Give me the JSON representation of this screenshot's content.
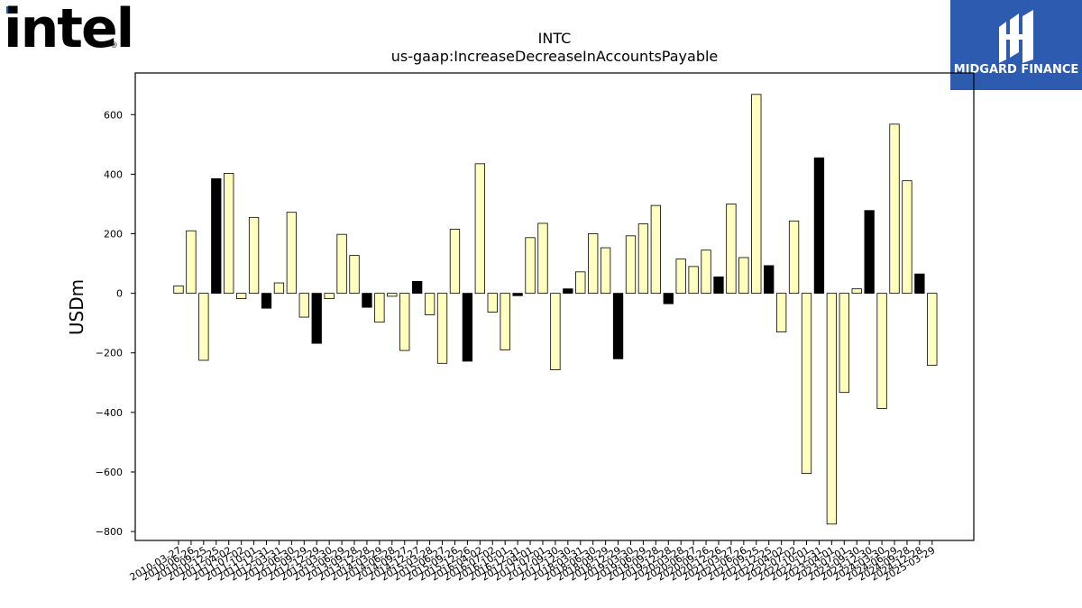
{
  "logos": {
    "left_text": "intel",
    "left_reg": "®",
    "right_text": "MIDGARD FINANCE",
    "right_bg": "#2d5bb0"
  },
  "chart_data": {
    "type": "bar",
    "title": "INTC",
    "subtitle": "us-gaap:IncreaseDecreaseInAccountsPayable",
    "ylabel": "USDm",
    "xlabel": "",
    "ylim": [
      -830,
      740
    ],
    "yticks": [
      -800,
      -600,
      -400,
      -200,
      0,
      200,
      400,
      600
    ],
    "ytick_labels": [
      "−800",
      "−600",
      "−400",
      "−200",
      "0",
      "200",
      "400",
      "600"
    ],
    "colors": {
      "q": "#ffffc0",
      "fy": "#000000",
      "edge": "#000000"
    },
    "categories": [
      "2010-03-27",
      "2010-06-26",
      "2010-09-25",
      "2010-12-25",
      "2011-04-02",
      "2011-07-02",
      "2011-10-01",
      "2011-12-31",
      "2012-03-31",
      "2012-06-30",
      "2012-09-29",
      "2012-12-29",
      "2013-03-30",
      "2013-06-29",
      "2013-09-28",
      "2013-12-28",
      "2014-03-29",
      "2014-06-28",
      "2014-09-27",
      "2014-12-27",
      "2015-03-28",
      "2015-06-27",
      "2015-09-26",
      "2015-12-26",
      "2016-04-02",
      "2016-07-02",
      "2016-10-01",
      "2016-12-31",
      "2017-04-01",
      "2017-07-01",
      "2017-09-30",
      "2017-12-30",
      "2018-03-31",
      "2018-06-30",
      "2018-09-29",
      "2018-12-29",
      "2019-03-30",
      "2019-06-29",
      "2019-09-28",
      "2019-12-28",
      "2020-03-28",
      "2020-06-27",
      "2020-09-26",
      "2020-12-26",
      "2021-03-27",
      "2021-06-26",
      "2021-09-25",
      "2021-12-25",
      "2022-04-02",
      "2022-07-02",
      "2022-10-01",
      "2022-12-31",
      "2023-04-01",
      "2023-07-01",
      "2023-09-30",
      "2023-12-30",
      "2024-03-30",
      "2024-06-29",
      "2024-09-28",
      "2024-12-28",
      "2025-03-29"
    ],
    "values": [
      25,
      210,
      -225,
      385,
      403,
      -18,
      255,
      -50,
      35,
      272,
      -80,
      -168,
      -18,
      198,
      127,
      -47,
      -97,
      -10,
      -192,
      40,
      -72,
      -235,
      215,
      -228,
      435,
      -63,
      -190,
      -8,
      187,
      235,
      -257,
      15,
      72,
      200,
      153,
      -220,
      193,
      233,
      295,
      -35,
      115,
      90,
      145,
      55,
      300,
      120,
      668,
      93,
      -130,
      243,
      -605,
      455,
      -775,
      -333,
      15,
      278,
      -387,
      568,
      378,
      65,
      -242
    ],
    "is_annual": [
      false,
      false,
      false,
      true,
      false,
      false,
      false,
      true,
      false,
      false,
      false,
      true,
      false,
      false,
      false,
      true,
      false,
      false,
      false,
      true,
      false,
      false,
      false,
      true,
      false,
      false,
      false,
      true,
      false,
      false,
      false,
      true,
      false,
      false,
      false,
      true,
      false,
      false,
      false,
      true,
      false,
      false,
      false,
      true,
      false,
      false,
      false,
      true,
      false,
      false,
      false,
      true,
      false,
      false,
      false,
      true,
      false,
      false,
      false,
      true,
      false
    ]
  }
}
